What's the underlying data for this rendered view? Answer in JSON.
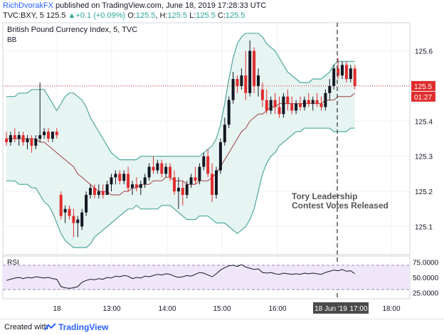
{
  "header": {
    "author": "RichDvorakFX",
    "published_text": " published on TradingView.com, June 18, 2019 17:28:33 UTC",
    "symbol": "TVC:BXY, 5",
    "last": "125.5",
    "change": "+0.1 (+0.09%)",
    "o_label": "O:",
    "o_value": "125.5",
    "h_label": "H:",
    "h_value": "125.5",
    "l_label": "L:",
    "l_value": "125.5",
    "c_label": "C:",
    "c_value": "125.5"
  },
  "footer": {
    "made_with": "Created with",
    "brand": "TradingView"
  },
  "colors": {
    "up": "#131722",
    "down": "#e02d2d",
    "bb_band": "#4ea89c",
    "bb_fill": "#e6f4f2",
    "bb_basis": "#a1413e",
    "rsi_line": "#131722",
    "rsi_fill": "#efe6fa",
    "price_line": "#e02d2d"
  },
  "chart_data": [
    {
      "type": "candlestick",
      "title": "British Pound Currency Index, 5, TVC",
      "indicator_label": "BB",
      "ylim": [
        125.02,
        125.68
      ],
      "y_ticks": [
        "125.6",
        "125.5",
        "125.4",
        "125.3",
        "125.2",
        "125.1"
      ],
      "x_ticks": [
        "18",
        "13:00",
        "14:00",
        "15:00",
        "16:00",
        "17:00",
        "18:00"
      ],
      "current_price": "125.5",
      "countdown": "01:27",
      "cursor_date_label": "18 Jun '19",
      "cursor_time_label": "17:00",
      "annotation": [
        "Tory Leadership",
        "Contest Votes Released"
      ],
      "candles": [
        {
          "o": 125.35,
          "h": 125.37,
          "l": 125.33,
          "c": 125.34
        },
        {
          "o": 125.34,
          "h": 125.37,
          "l": 125.33,
          "c": 125.36
        },
        {
          "o": 125.36,
          "h": 125.38,
          "l": 125.34,
          "c": 125.35
        },
        {
          "o": 125.35,
          "h": 125.37,
          "l": 125.33,
          "c": 125.36
        },
        {
          "o": 125.36,
          "h": 125.37,
          "l": 125.33,
          "c": 125.34
        },
        {
          "o": 125.34,
          "h": 125.36,
          "l": 125.32,
          "c": 125.35
        },
        {
          "o": 125.35,
          "h": 125.36,
          "l": 125.31,
          "c": 125.33
        },
        {
          "o": 125.33,
          "h": 125.36,
          "l": 125.32,
          "c": 125.35
        },
        {
          "o": 125.35,
          "h": 125.51,
          "l": 125.34,
          "c": 125.36
        },
        {
          "o": 125.36,
          "h": 125.38,
          "l": 125.35,
          "c": 125.37
        },
        {
          "o": 125.37,
          "h": 125.38,
          "l": 125.34,
          "c": 125.35
        },
        {
          "o": 125.35,
          "h": 125.37,
          "l": 125.34,
          "c": 125.37
        },
        {
          "o": 125.37,
          "h": 125.38,
          "l": 125.35,
          "c": 125.36
        },
        {
          "o": 125.19,
          "h": 125.2,
          "l": 125.12,
          "c": 125.13
        },
        {
          "o": 125.14,
          "h": 125.16,
          "l": 125.11,
          "c": 125.15
        },
        {
          "o": 125.15,
          "h": 125.16,
          "l": 125.12,
          "c": 125.13
        },
        {
          "o": 125.13,
          "h": 125.15,
          "l": 125.07,
          "c": 125.11
        },
        {
          "o": 125.11,
          "h": 125.13,
          "l": 125.07,
          "c": 125.12
        },
        {
          "o": 125.1,
          "h": 125.15,
          "l": 125.09,
          "c": 125.14
        },
        {
          "o": 125.14,
          "h": 125.2,
          "l": 125.13,
          "c": 125.19
        },
        {
          "o": 125.19,
          "h": 125.22,
          "l": 125.18,
          "c": 125.21
        },
        {
          "o": 125.21,
          "h": 125.22,
          "l": 125.18,
          "c": 125.19
        },
        {
          "o": 125.19,
          "h": 125.22,
          "l": 125.18,
          "c": 125.2
        },
        {
          "o": 125.2,
          "h": 125.22,
          "l": 125.18,
          "c": 125.19
        },
        {
          "o": 125.19,
          "h": 125.23,
          "l": 125.19,
          "c": 125.22
        },
        {
          "o": 125.22,
          "h": 125.25,
          "l": 125.2,
          "c": 125.24
        },
        {
          "o": 125.24,
          "h": 125.26,
          "l": 125.22,
          "c": 125.25
        },
        {
          "o": 125.25,
          "h": 125.26,
          "l": 125.22,
          "c": 125.23
        },
        {
          "o": 125.23,
          "h": 125.26,
          "l": 125.22,
          "c": 125.25
        },
        {
          "o": 125.25,
          "h": 125.27,
          "l": 125.2,
          "c": 125.21
        },
        {
          "o": 125.21,
          "h": 125.23,
          "l": 125.19,
          "c": 125.22
        },
        {
          "o": 125.22,
          "h": 125.24,
          "l": 125.2,
          "c": 125.21
        },
        {
          "o": 125.21,
          "h": 125.23,
          "l": 125.19,
          "c": 125.22
        },
        {
          "o": 125.22,
          "h": 125.25,
          "l": 125.21,
          "c": 125.24
        },
        {
          "o": 125.24,
          "h": 125.28,
          "l": 125.23,
          "c": 125.27
        },
        {
          "o": 125.27,
          "h": 125.3,
          "l": 125.25,
          "c": 125.26
        },
        {
          "o": 125.26,
          "h": 125.29,
          "l": 125.25,
          "c": 125.28
        },
        {
          "o": 125.28,
          "h": 125.29,
          "l": 125.24,
          "c": 125.25
        },
        {
          "o": 125.25,
          "h": 125.28,
          "l": 125.24,
          "c": 125.27
        },
        {
          "o": 125.27,
          "h": 125.28,
          "l": 125.23,
          "c": 125.24
        },
        {
          "o": 125.24,
          "h": 125.26,
          "l": 125.19,
          "c": 125.2
        },
        {
          "o": 125.2,
          "h": 125.24,
          "l": 125.15,
          "c": 125.21
        },
        {
          "o": 125.21,
          "h": 125.23,
          "l": 125.16,
          "c": 125.19
        },
        {
          "o": 125.19,
          "h": 125.23,
          "l": 125.18,
          "c": 125.22
        },
        {
          "o": 125.22,
          "h": 125.25,
          "l": 125.21,
          "c": 125.24
        },
        {
          "o": 125.24,
          "h": 125.27,
          "l": 125.22,
          "c": 125.23
        },
        {
          "o": 125.23,
          "h": 125.28,
          "l": 125.22,
          "c": 125.27
        },
        {
          "o": 125.27,
          "h": 125.31,
          "l": 125.26,
          "c": 125.3
        },
        {
          "o": 125.3,
          "h": 125.32,
          "l": 125.24,
          "c": 125.25
        },
        {
          "o": 125.25,
          "h": 125.28,
          "l": 125.17,
          "c": 125.19
        },
        {
          "o": 125.19,
          "h": 125.27,
          "l": 125.18,
          "c": 125.26
        },
        {
          "o": 125.26,
          "h": 125.35,
          "l": 125.25,
          "c": 125.34
        },
        {
          "o": 125.34,
          "h": 125.41,
          "l": 125.33,
          "c": 125.39
        },
        {
          "o": 125.39,
          "h": 125.47,
          "l": 125.38,
          "c": 125.46
        },
        {
          "o": 125.46,
          "h": 125.54,
          "l": 125.45,
          "c": 125.52
        },
        {
          "o": 125.52,
          "h": 125.53,
          "l": 125.48,
          "c": 125.5
        },
        {
          "o": 125.5,
          "h": 125.55,
          "l": 125.49,
          "c": 125.53
        },
        {
          "o": 125.53,
          "h": 125.6,
          "l": 125.46,
          "c": 125.48
        },
        {
          "o": 125.48,
          "h": 125.63,
          "l": 125.47,
          "c": 125.6
        },
        {
          "o": 125.6,
          "h": 125.61,
          "l": 125.48,
          "c": 125.5
        },
        {
          "o": 125.5,
          "h": 125.55,
          "l": 125.47,
          "c": 125.53
        },
        {
          "o": 125.49,
          "h": 125.51,
          "l": 125.44,
          "c": 125.46
        },
        {
          "o": 125.46,
          "h": 125.49,
          "l": 125.42,
          "c": 125.43
        },
        {
          "o": 125.43,
          "h": 125.47,
          "l": 125.42,
          "c": 125.46
        },
        {
          "o": 125.46,
          "h": 125.48,
          "l": 125.42,
          "c": 125.44
        },
        {
          "o": 125.44,
          "h": 125.47,
          "l": 125.41,
          "c": 125.42
        },
        {
          "o": 125.42,
          "h": 125.48,
          "l": 125.41,
          "c": 125.47
        },
        {
          "o": 125.47,
          "h": 125.49,
          "l": 125.43,
          "c": 125.45
        },
        {
          "o": 125.45,
          "h": 125.47,
          "l": 125.42,
          "c": 125.43
        },
        {
          "o": 125.43,
          "h": 125.46,
          "l": 125.42,
          "c": 125.45
        },
        {
          "o": 125.45,
          "h": 125.47,
          "l": 125.43,
          "c": 125.44
        },
        {
          "o": 125.44,
          "h": 125.47,
          "l": 125.43,
          "c": 125.46
        },
        {
          "o": 125.46,
          "h": 125.48,
          "l": 125.44,
          "c": 125.45
        },
        {
          "o": 125.45,
          "h": 125.47,
          "l": 125.43,
          "c": 125.46
        },
        {
          "o": 125.46,
          "h": 125.48,
          "l": 125.44,
          "c": 125.45
        },
        {
          "o": 125.45,
          "h": 125.47,
          "l": 125.43,
          "c": 125.44
        },
        {
          "o": 125.44,
          "h": 125.49,
          "l": 125.43,
          "c": 125.48
        },
        {
          "o": 125.48,
          "h": 125.52,
          "l": 125.46,
          "c": 125.5
        },
        {
          "o": 125.5,
          "h": 125.56,
          "l": 125.49,
          "c": 125.55
        },
        {
          "o": 125.55,
          "h": 125.58,
          "l": 125.52,
          "c": 125.53
        },
        {
          "o": 125.53,
          "h": 125.57,
          "l": 125.52,
          "c": 125.56
        },
        {
          "o": 125.56,
          "h": 125.57,
          "l": 125.51,
          "c": 125.52
        },
        {
          "o": 125.52,
          "h": 125.56,
          "l": 125.51,
          "c": 125.55
        },
        {
          "o": 125.55,
          "h": 125.56,
          "l": 125.49,
          "c": 125.5
        }
      ],
      "bb_upper": [
        125.47,
        125.47,
        125.47,
        125.48,
        125.48,
        125.48,
        125.49,
        125.49,
        125.49,
        125.49,
        125.47,
        125.45,
        125.43,
        125.45,
        125.47,
        125.48,
        125.48,
        125.47,
        125.46,
        125.44,
        125.41,
        125.39,
        125.37,
        125.35,
        125.33,
        125.31,
        125.3,
        125.29,
        125.29,
        125.29,
        125.29,
        125.29,
        125.3,
        125.3,
        125.3,
        125.3,
        125.3,
        125.3,
        125.3,
        125.3,
        125.3,
        125.3,
        125.3,
        125.3,
        125.3,
        125.3,
        125.3,
        125.31,
        125.32,
        125.33,
        125.35,
        125.39,
        125.45,
        125.52,
        125.58,
        125.62,
        125.64,
        125.65,
        125.65,
        125.65,
        125.65,
        125.64,
        125.62,
        125.61,
        125.6,
        125.58,
        125.56,
        125.54,
        125.53,
        125.52,
        125.51,
        125.51,
        125.51,
        125.52,
        125.52,
        125.52,
        125.53,
        125.54,
        125.56,
        125.57,
        125.57,
        125.57,
        125.57,
        125.57
      ],
      "bb_basis": [
        125.35,
        125.35,
        125.35,
        125.35,
        125.35,
        125.35,
        125.35,
        125.35,
        125.34,
        125.34,
        125.33,
        125.32,
        125.31,
        125.3,
        125.29,
        125.28,
        125.27,
        125.25,
        125.24,
        125.23,
        125.22,
        125.21,
        125.2,
        125.2,
        125.2,
        125.19,
        125.19,
        125.19,
        125.2,
        125.2,
        125.21,
        125.21,
        125.22,
        125.22,
        125.22,
        125.23,
        125.23,
        125.23,
        125.24,
        125.24,
        125.23,
        125.23,
        125.23,
        125.22,
        125.22,
        125.22,
        125.23,
        125.23,
        125.23,
        125.24,
        125.25,
        125.27,
        125.29,
        125.31,
        125.33,
        125.35,
        125.37,
        125.38,
        125.4,
        125.41,
        125.42,
        125.42,
        125.43,
        125.44,
        125.44,
        125.45,
        125.45,
        125.45,
        125.45,
        125.45,
        125.45,
        125.45,
        125.45,
        125.45,
        125.45,
        125.45,
        125.46,
        125.46,
        125.46,
        125.47,
        125.47,
        125.47,
        125.47,
        125.48
      ],
      "bb_lower": [
        125.23,
        125.23,
        125.23,
        125.22,
        125.22,
        125.22,
        125.21,
        125.21,
        125.19,
        125.17,
        125.16,
        125.14,
        125.11,
        125.08,
        125.06,
        125.05,
        125.04,
        125.04,
        125.04,
        125.04,
        125.05,
        125.07,
        125.08,
        125.09,
        125.1,
        125.11,
        125.12,
        125.13,
        125.14,
        125.15,
        125.15,
        125.16,
        125.15,
        125.15,
        125.15,
        125.15,
        125.15,
        125.16,
        125.16,
        125.16,
        125.15,
        125.14,
        125.13,
        125.12,
        125.12,
        125.12,
        125.13,
        125.13,
        125.13,
        125.12,
        125.11,
        125.11,
        125.11,
        125.1,
        125.09,
        125.08,
        125.09,
        125.1,
        125.12,
        125.15,
        125.2,
        125.25,
        125.28,
        125.3,
        125.31,
        125.33,
        125.34,
        125.35,
        125.36,
        125.37,
        125.37,
        125.38,
        125.38,
        125.38,
        125.38,
        125.38,
        125.38,
        125.38,
        125.37,
        125.37,
        125.37,
        125.37,
        125.38,
        125.38
      ]
    },
    {
      "type": "line",
      "title": "RSI",
      "ylim": [
        15,
        85
      ],
      "y_ticks": [
        "75.0000",
        "50.0000",
        "25.0000"
      ],
      "band": [
        30,
        70
      ],
      "values": [
        45,
        47,
        49,
        50,
        48,
        50,
        49,
        51,
        50,
        49,
        50,
        48,
        47,
        35,
        33,
        32,
        33,
        35,
        42,
        45,
        47,
        46,
        48,
        47,
        50,
        49,
        52,
        51,
        53,
        52,
        48,
        50,
        49,
        52,
        51,
        53,
        55,
        54,
        56,
        55,
        52,
        50,
        51,
        53,
        52,
        55,
        58,
        57,
        54,
        51,
        56,
        62,
        66,
        69,
        70,
        68,
        71,
        67,
        65,
        63,
        64,
        58,
        57,
        58,
        56,
        55,
        57,
        56,
        55,
        56,
        55,
        57,
        56,
        57,
        56,
        55,
        58,
        60,
        62,
        61,
        63,
        60,
        61,
        56
      ]
    }
  ]
}
